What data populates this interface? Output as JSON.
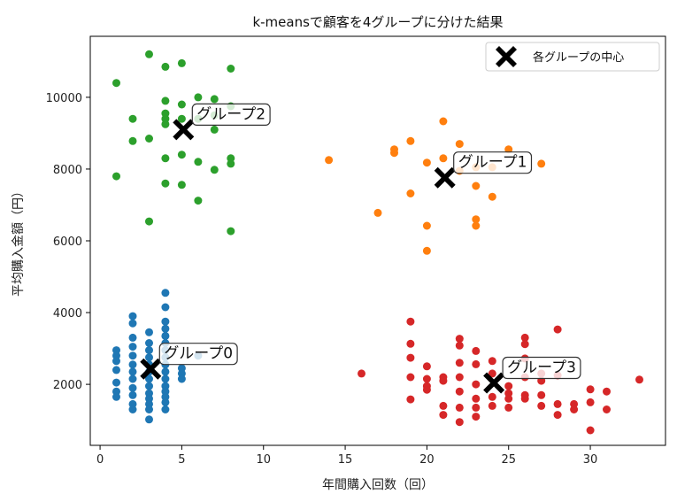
{
  "chart_data": {
    "type": "scatter",
    "title": "k-meansで顧客を4グループに分けた結果",
    "xlabel": "年間購入回数（回）",
    "ylabel": "平均購入金額（円）",
    "xlim": [
      -0.6,
      34.6
    ],
    "ylim": [
      300,
      11700
    ],
    "xticks": [
      0,
      5,
      10,
      15,
      20,
      25,
      30
    ],
    "yticks": [
      2000,
      4000,
      6000,
      8000,
      10000
    ],
    "grid": false,
    "legend": {
      "position": "top-right",
      "label": "各グループの中心"
    },
    "series": [
      {
        "color": "#1f77b4",
        "points": [
          [
            1,
            2950
          ],
          [
            1,
            2800
          ],
          [
            1,
            2650
          ],
          [
            1,
            2400
          ],
          [
            1,
            2050
          ],
          [
            1,
            1800
          ],
          [
            1,
            1650
          ],
          [
            2,
            3900
          ],
          [
            2,
            3700
          ],
          [
            2,
            3300
          ],
          [
            2,
            3050
          ],
          [
            2,
            2800
          ],
          [
            2,
            2550
          ],
          [
            2,
            2350
          ],
          [
            2,
            2150
          ],
          [
            2,
            1900
          ],
          [
            2,
            1700
          ],
          [
            2,
            1450
          ],
          [
            2,
            1300
          ],
          [
            3,
            3450
          ],
          [
            3,
            3150
          ],
          [
            3,
            2950
          ],
          [
            3,
            2750
          ],
          [
            3,
            2550
          ],
          [
            3,
            2350
          ],
          [
            3,
            2150
          ],
          [
            3,
            1950
          ],
          [
            3,
            1750
          ],
          [
            3,
            1600
          ],
          [
            3,
            1450
          ],
          [
            3,
            1300
          ],
          [
            3,
            1020
          ],
          [
            4,
            4550
          ],
          [
            4,
            4150
          ],
          [
            4,
            3750
          ],
          [
            4,
            3550
          ],
          [
            4,
            3350
          ],
          [
            4,
            3150
          ],
          [
            4,
            2950
          ],
          [
            4,
            2750
          ],
          [
            4,
            2550
          ],
          [
            4,
            2350
          ],
          [
            4,
            2150
          ],
          [
            4,
            1950
          ],
          [
            4,
            1800
          ],
          [
            4,
            1650
          ],
          [
            4,
            1500
          ],
          [
            4,
            1300
          ],
          [
            5,
            2450
          ],
          [
            5,
            2300
          ],
          [
            5,
            2150
          ],
          [
            6,
            2800
          ]
        ]
      },
      {
        "color": "#ff7f0e",
        "points": [
          [
            14,
            8250
          ],
          [
            17,
            6780
          ],
          [
            18,
            8450
          ],
          [
            18,
            8550
          ],
          [
            19,
            8780
          ],
          [
            19,
            7320
          ],
          [
            20,
            8180
          ],
          [
            20,
            6420
          ],
          [
            20,
            5720
          ],
          [
            21,
            9330
          ],
          [
            21,
            8300
          ],
          [
            22,
            8700
          ],
          [
            22,
            7950
          ],
          [
            23,
            8050
          ],
          [
            23,
            7530
          ],
          [
            23,
            6600
          ],
          [
            23,
            6420
          ],
          [
            24,
            8050
          ],
          [
            24,
            7230
          ],
          [
            25,
            8550
          ],
          [
            27,
            8150
          ]
        ]
      },
      {
        "color": "#2ca02c",
        "points": [
          [
            1,
            10400
          ],
          [
            1,
            7800
          ],
          [
            2,
            9400
          ],
          [
            2,
            8780
          ],
          [
            3,
            11200
          ],
          [
            3,
            8850
          ],
          [
            3,
            6540
          ],
          [
            4,
            10850
          ],
          [
            4,
            9900
          ],
          [
            4,
            9550
          ],
          [
            4,
            9400
          ],
          [
            4,
            9250
          ],
          [
            4,
            8300
          ],
          [
            4,
            7600
          ],
          [
            5,
            10950
          ],
          [
            5,
            9800
          ],
          [
            5,
            9400
          ],
          [
            5,
            8400
          ],
          [
            5,
            7560
          ],
          [
            6,
            10000
          ],
          [
            6,
            9400
          ],
          [
            6,
            8200
          ],
          [
            6,
            7120
          ],
          [
            7,
            9950
          ],
          [
            7,
            9500
          ],
          [
            7,
            9100
          ],
          [
            7,
            7980
          ],
          [
            8,
            10800
          ],
          [
            8,
            9750
          ],
          [
            8,
            8300
          ],
          [
            8,
            8150
          ],
          [
            8,
            6270
          ]
        ]
      },
      {
        "color": "#d62728",
        "points": [
          [
            16,
            2300
          ],
          [
            19,
            3750
          ],
          [
            19,
            3130
          ],
          [
            19,
            2740
          ],
          [
            19,
            2200
          ],
          [
            19,
            1580
          ],
          [
            20,
            2500
          ],
          [
            20,
            2150
          ],
          [
            20,
            1950
          ],
          [
            20,
            1850
          ],
          [
            21,
            2200
          ],
          [
            21,
            2100
          ],
          [
            21,
            1400
          ],
          [
            21,
            1150
          ],
          [
            22,
            3270
          ],
          [
            22,
            3080
          ],
          [
            22,
            2600
          ],
          [
            22,
            2200
          ],
          [
            22,
            1800
          ],
          [
            22,
            1350
          ],
          [
            22,
            950
          ],
          [
            23,
            2930
          ],
          [
            23,
            2560
          ],
          [
            23,
            2000
          ],
          [
            23,
            1600
          ],
          [
            23,
            1350
          ],
          [
            23,
            1100
          ],
          [
            24,
            2650
          ],
          [
            24,
            2300
          ],
          [
            24,
            1650
          ],
          [
            24,
            1400
          ],
          [
            25,
            1950
          ],
          [
            25,
            1750
          ],
          [
            25,
            1600
          ],
          [
            25,
            1350
          ],
          [
            26,
            3300
          ],
          [
            26,
            3120
          ],
          [
            26,
            2720
          ],
          [
            26,
            2200
          ],
          [
            26,
            1700
          ],
          [
            26,
            1600
          ],
          [
            27,
            2300
          ],
          [
            27,
            2100
          ],
          [
            27,
            1700
          ],
          [
            27,
            1400
          ],
          [
            28,
            3530
          ],
          [
            28,
            2250
          ],
          [
            28,
            1450
          ],
          [
            28,
            1150
          ],
          [
            29,
            1450
          ],
          [
            29,
            1300
          ],
          [
            30,
            1860
          ],
          [
            30,
            1500
          ],
          [
            30,
            720
          ],
          [
            31,
            1800
          ],
          [
            31,
            1300
          ],
          [
            33,
            2130
          ]
        ]
      }
    ],
    "centroids": [
      {
        "label": "グループ0",
        "x": 3.1,
        "y": 2430
      },
      {
        "label": "グループ1",
        "x": 21.1,
        "y": 7760
      },
      {
        "label": "グループ2",
        "x": 5.1,
        "y": 9100
      },
      {
        "label": "グループ3",
        "x": 24.1,
        "y": 2040
      }
    ]
  }
}
